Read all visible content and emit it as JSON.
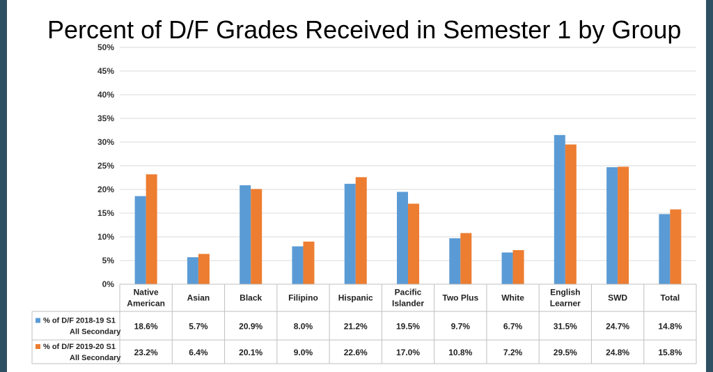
{
  "chart_data": {
    "type": "bar",
    "title": "Percent of D/F Grades Received in Semester 1 by Group",
    "xlabel": "",
    "ylabel": "",
    "ylim": [
      0,
      50
    ],
    "y_ticks": [
      "0%",
      "5%",
      "10%",
      "15%",
      "20%",
      "25%",
      "30%",
      "35%",
      "40%",
      "45%",
      "50%"
    ],
    "grid": true,
    "legend": "table-left",
    "categories": [
      [
        "Native",
        "American"
      ],
      [
        "Asian"
      ],
      [
        "Black"
      ],
      [
        "Filipino"
      ],
      [
        "Hispanic"
      ],
      [
        "Pacific",
        "Islander"
      ],
      [
        "Two Plus"
      ],
      [
        "White"
      ],
      [
        "English",
        "Learner"
      ],
      [
        "SWD"
      ],
      [
        "Total"
      ]
    ],
    "series": [
      {
        "name": [
          "% of D/F 2018-19 S1",
          "All Secondary"
        ],
        "color": "#5b9bd5",
        "values": [
          18.6,
          5.7,
          20.9,
          8.0,
          21.2,
          19.5,
          9.7,
          6.7,
          31.5,
          24.7,
          14.8
        ],
        "labels": [
          "18.6%",
          "5.7%",
          "20.9%",
          "8.0%",
          "21.2%",
          "19.5%",
          "9.7%",
          "6.7%",
          "31.5%",
          "24.7%",
          "14.8%"
        ]
      },
      {
        "name": [
          "% of D/F 2019-20 S1",
          "All Secondary"
        ],
        "color": "#ed7d31",
        "values": [
          23.2,
          6.4,
          20.1,
          9.0,
          22.6,
          17.0,
          10.8,
          7.2,
          29.5,
          24.8,
          15.8
        ],
        "labels": [
          "23.2%",
          "6.4%",
          "20.1%",
          "9.0%",
          "22.6%",
          "17.0%",
          "10.8%",
          "7.2%",
          "29.5%",
          "24.8%",
          "15.8%"
        ]
      }
    ]
  }
}
